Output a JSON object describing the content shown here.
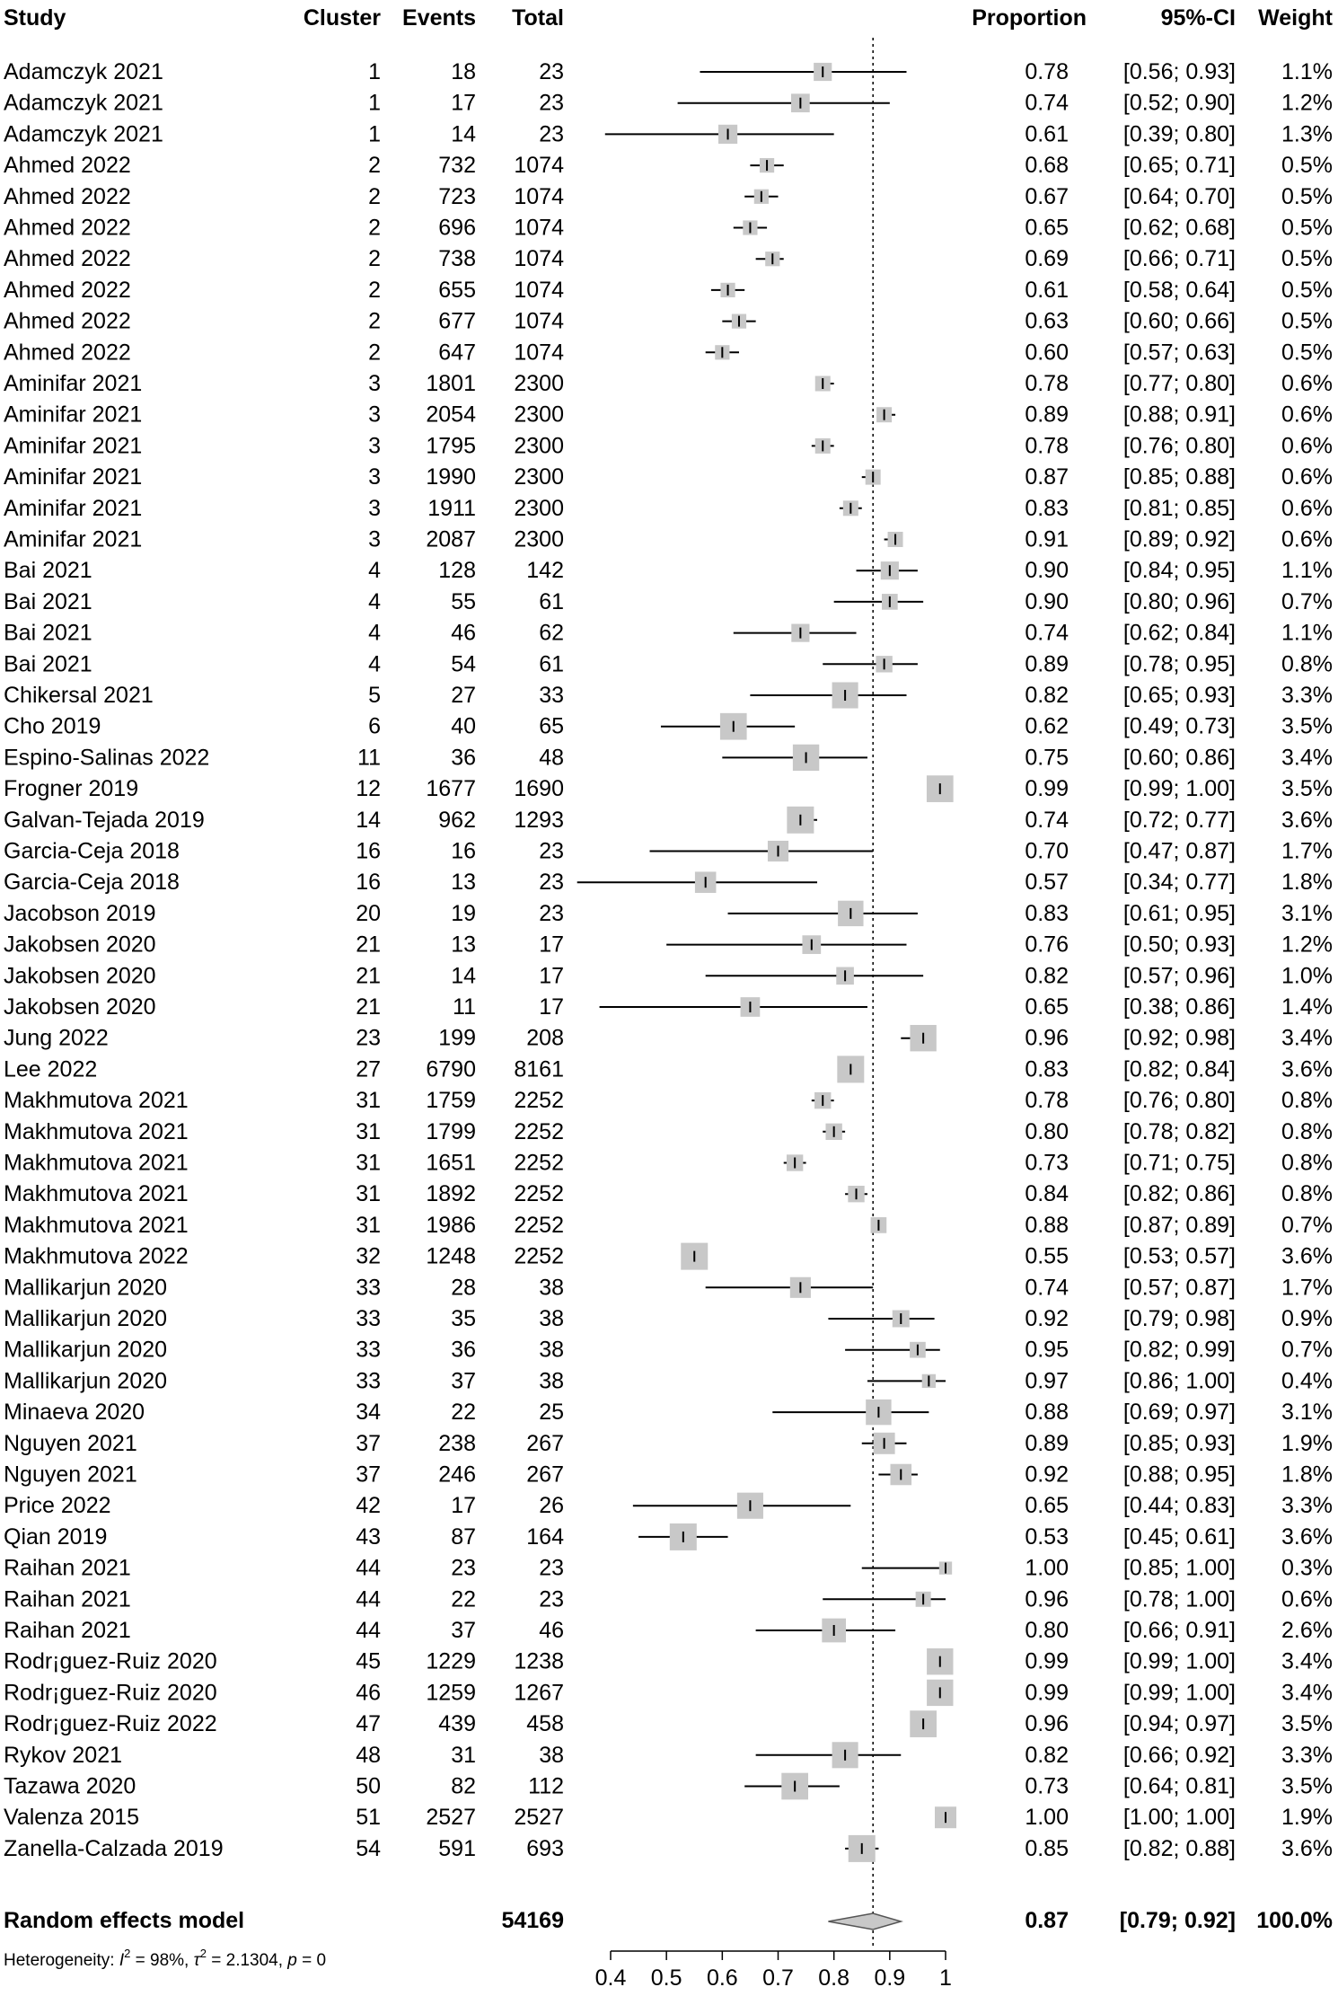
{
  "chart_data": {
    "type": "forest",
    "columns": {
      "study": "Study",
      "cluster": "Cluster",
      "events": "Events",
      "total": "Total",
      "proportion": "Proportion",
      "ci": "95%-CI",
      "weight": "Weight"
    },
    "xaxis": {
      "range": [
        0.4,
        1.0
      ],
      "ticks": [
        "0.4",
        "0.5",
        "0.6",
        "0.7",
        "0.8",
        "0.9",
        "1"
      ],
      "reference_line": 0.87
    },
    "rows": [
      {
        "study": "Adamczyk 2021",
        "cluster": "1",
        "events": "18",
        "total": "23",
        "prop": 0.78,
        "lo": 0.56,
        "hi": 0.93,
        "prop_text": "0.78",
        "ci_text": "[0.56; 0.93]",
        "weight": "1.1%"
      },
      {
        "study": "Adamczyk 2021",
        "cluster": "1",
        "events": "17",
        "total": "23",
        "prop": 0.74,
        "lo": 0.52,
        "hi": 0.9,
        "prop_text": "0.74",
        "ci_text": "[0.52; 0.90]",
        "weight": "1.2%"
      },
      {
        "study": "Adamczyk 2021",
        "cluster": "1",
        "events": "14",
        "total": "23",
        "prop": 0.61,
        "lo": 0.39,
        "hi": 0.8,
        "prop_text": "0.61",
        "ci_text": "[0.39; 0.80]",
        "weight": "1.3%"
      },
      {
        "study": "Ahmed 2022",
        "cluster": "2",
        "events": "732",
        "total": "1074",
        "prop": 0.68,
        "lo": 0.65,
        "hi": 0.71,
        "prop_text": "0.68",
        "ci_text": "[0.65; 0.71]",
        "weight": "0.5%"
      },
      {
        "study": "Ahmed 2022",
        "cluster": "2",
        "events": "723",
        "total": "1074",
        "prop": 0.67,
        "lo": 0.64,
        "hi": 0.7,
        "prop_text": "0.67",
        "ci_text": "[0.64; 0.70]",
        "weight": "0.5%"
      },
      {
        "study": "Ahmed 2022",
        "cluster": "2",
        "events": "696",
        "total": "1074",
        "prop": 0.65,
        "lo": 0.62,
        "hi": 0.68,
        "prop_text": "0.65",
        "ci_text": "[0.62; 0.68]",
        "weight": "0.5%"
      },
      {
        "study": "Ahmed 2022",
        "cluster": "2",
        "events": "738",
        "total": "1074",
        "prop": 0.69,
        "lo": 0.66,
        "hi": 0.71,
        "prop_text": "0.69",
        "ci_text": "[0.66; 0.71]",
        "weight": "0.5%"
      },
      {
        "study": "Ahmed 2022",
        "cluster": "2",
        "events": "655",
        "total": "1074",
        "prop": 0.61,
        "lo": 0.58,
        "hi": 0.64,
        "prop_text": "0.61",
        "ci_text": "[0.58; 0.64]",
        "weight": "0.5%"
      },
      {
        "study": "Ahmed 2022",
        "cluster": "2",
        "events": "677",
        "total": "1074",
        "prop": 0.63,
        "lo": 0.6,
        "hi": 0.66,
        "prop_text": "0.63",
        "ci_text": "[0.60; 0.66]",
        "weight": "0.5%"
      },
      {
        "study": "Ahmed 2022",
        "cluster": "2",
        "events": "647",
        "total": "1074",
        "prop": 0.6,
        "lo": 0.57,
        "hi": 0.63,
        "prop_text": "0.60",
        "ci_text": "[0.57; 0.63]",
        "weight": "0.5%"
      },
      {
        "study": "Aminifar 2021",
        "cluster": "3",
        "events": "1801",
        "total": "2300",
        "prop": 0.78,
        "lo": 0.77,
        "hi": 0.8,
        "prop_text": "0.78",
        "ci_text": "[0.77; 0.80]",
        "weight": "0.6%"
      },
      {
        "study": "Aminifar 2021",
        "cluster": "3",
        "events": "2054",
        "total": "2300",
        "prop": 0.89,
        "lo": 0.88,
        "hi": 0.91,
        "prop_text": "0.89",
        "ci_text": "[0.88; 0.91]",
        "weight": "0.6%"
      },
      {
        "study": "Aminifar 2021",
        "cluster": "3",
        "events": "1795",
        "total": "2300",
        "prop": 0.78,
        "lo": 0.76,
        "hi": 0.8,
        "prop_text": "0.78",
        "ci_text": "[0.76; 0.80]",
        "weight": "0.6%"
      },
      {
        "study": "Aminifar 2021",
        "cluster": "3",
        "events": "1990",
        "total": "2300",
        "prop": 0.87,
        "lo": 0.85,
        "hi": 0.88,
        "prop_text": "0.87",
        "ci_text": "[0.85; 0.88]",
        "weight": "0.6%"
      },
      {
        "study": "Aminifar 2021",
        "cluster": "3",
        "events": "1911",
        "total": "2300",
        "prop": 0.83,
        "lo": 0.81,
        "hi": 0.85,
        "prop_text": "0.83",
        "ci_text": "[0.81; 0.85]",
        "weight": "0.6%"
      },
      {
        "study": "Aminifar 2021",
        "cluster": "3",
        "events": "2087",
        "total": "2300",
        "prop": 0.91,
        "lo": 0.89,
        "hi": 0.92,
        "prop_text": "0.91",
        "ci_text": "[0.89; 0.92]",
        "weight": "0.6%"
      },
      {
        "study": "Bai 2021",
        "cluster": "4",
        "events": "128",
        "total": "142",
        "prop": 0.9,
        "lo": 0.84,
        "hi": 0.95,
        "prop_text": "0.90",
        "ci_text": "[0.84; 0.95]",
        "weight": "1.1%"
      },
      {
        "study": "Bai 2021",
        "cluster": "4",
        "events": "55",
        "total": "61",
        "prop": 0.9,
        "lo": 0.8,
        "hi": 0.96,
        "prop_text": "0.90",
        "ci_text": "[0.80; 0.96]",
        "weight": "0.7%"
      },
      {
        "study": "Bai 2021",
        "cluster": "4",
        "events": "46",
        "total": "62",
        "prop": 0.74,
        "lo": 0.62,
        "hi": 0.84,
        "prop_text": "0.74",
        "ci_text": "[0.62; 0.84]",
        "weight": "1.1%"
      },
      {
        "study": "Bai 2021",
        "cluster": "4",
        "events": "54",
        "total": "61",
        "prop": 0.89,
        "lo": 0.78,
        "hi": 0.95,
        "prop_text": "0.89",
        "ci_text": "[0.78; 0.95]",
        "weight": "0.8%"
      },
      {
        "study": "Chikersal 2021",
        "cluster": "5",
        "events": "27",
        "total": "33",
        "prop": 0.82,
        "lo": 0.65,
        "hi": 0.93,
        "prop_text": "0.82",
        "ci_text": "[0.65; 0.93]",
        "weight": "3.3%"
      },
      {
        "study": "Cho 2019",
        "cluster": "6",
        "events": "40",
        "total": "65",
        "prop": 0.62,
        "lo": 0.49,
        "hi": 0.73,
        "prop_text": "0.62",
        "ci_text": "[0.49; 0.73]",
        "weight": "3.5%"
      },
      {
        "study": "Espino-Salinas 2022",
        "cluster": "11",
        "events": "36",
        "total": "48",
        "prop": 0.75,
        "lo": 0.6,
        "hi": 0.86,
        "prop_text": "0.75",
        "ci_text": "[0.60; 0.86]",
        "weight": "3.4%"
      },
      {
        "study": "Frogner 2019",
        "cluster": "12",
        "events": "1677",
        "total": "1690",
        "prop": 0.99,
        "lo": 0.99,
        "hi": 1.0,
        "prop_text": "0.99",
        "ci_text": "[0.99; 1.00]",
        "weight": "3.5%"
      },
      {
        "study": "Galvan-Tejada 2019",
        "cluster": "14",
        "events": "962",
        "total": "1293",
        "prop": 0.74,
        "lo": 0.72,
        "hi": 0.77,
        "prop_text": "0.74",
        "ci_text": "[0.72; 0.77]",
        "weight": "3.6%"
      },
      {
        "study": "Garcia-Ceja 2018",
        "cluster": "16",
        "events": "16",
        "total": "23",
        "prop": 0.7,
        "lo": 0.47,
        "hi": 0.87,
        "prop_text": "0.70",
        "ci_text": "[0.47; 0.87]",
        "weight": "1.7%"
      },
      {
        "study": "Garcia-Ceja 2018",
        "cluster": "16",
        "events": "13",
        "total": "23",
        "prop": 0.57,
        "lo": 0.34,
        "hi": 0.77,
        "prop_text": "0.57",
        "ci_text": "[0.34; 0.77]",
        "weight": "1.8%"
      },
      {
        "study": "Jacobson 2019",
        "cluster": "20",
        "events": "19",
        "total": "23",
        "prop": 0.83,
        "lo": 0.61,
        "hi": 0.95,
        "prop_text": "0.83",
        "ci_text": "[0.61; 0.95]",
        "weight": "3.1%"
      },
      {
        "study": "Jakobsen 2020",
        "cluster": "21",
        "events": "13",
        "total": "17",
        "prop": 0.76,
        "lo": 0.5,
        "hi": 0.93,
        "prop_text": "0.76",
        "ci_text": "[0.50; 0.93]",
        "weight": "1.2%"
      },
      {
        "study": "Jakobsen 2020",
        "cluster": "21",
        "events": "14",
        "total": "17",
        "prop": 0.82,
        "lo": 0.57,
        "hi": 0.96,
        "prop_text": "0.82",
        "ci_text": "[0.57; 0.96]",
        "weight": "1.0%"
      },
      {
        "study": "Jakobsen 2020",
        "cluster": "21",
        "events": "11",
        "total": "17",
        "prop": 0.65,
        "lo": 0.38,
        "hi": 0.86,
        "prop_text": "0.65",
        "ci_text": "[0.38; 0.86]",
        "weight": "1.4%"
      },
      {
        "study": "Jung 2022",
        "cluster": "23",
        "events": "199",
        "total": "208",
        "prop": 0.96,
        "lo": 0.92,
        "hi": 0.98,
        "prop_text": "0.96",
        "ci_text": "[0.92; 0.98]",
        "weight": "3.4%"
      },
      {
        "study": "Lee 2022",
        "cluster": "27",
        "events": "6790",
        "total": "8161",
        "prop": 0.83,
        "lo": 0.82,
        "hi": 0.84,
        "prop_text": "0.83",
        "ci_text": "[0.82; 0.84]",
        "weight": "3.6%"
      },
      {
        "study": "Makhmutova 2021",
        "cluster": "31",
        "events": "1759",
        "total": "2252",
        "prop": 0.78,
        "lo": 0.76,
        "hi": 0.8,
        "prop_text": "0.78",
        "ci_text": "[0.76; 0.80]",
        "weight": "0.8%"
      },
      {
        "study": "Makhmutova 2021",
        "cluster": "31",
        "events": "1799",
        "total": "2252",
        "prop": 0.8,
        "lo": 0.78,
        "hi": 0.82,
        "prop_text": "0.80",
        "ci_text": "[0.78; 0.82]",
        "weight": "0.8%"
      },
      {
        "study": "Makhmutova 2021",
        "cluster": "31",
        "events": "1651",
        "total": "2252",
        "prop": 0.73,
        "lo": 0.71,
        "hi": 0.75,
        "prop_text": "0.73",
        "ci_text": "[0.71; 0.75]",
        "weight": "0.8%"
      },
      {
        "study": "Makhmutova 2021",
        "cluster": "31",
        "events": "1892",
        "total": "2252",
        "prop": 0.84,
        "lo": 0.82,
        "hi": 0.86,
        "prop_text": "0.84",
        "ci_text": "[0.82; 0.86]",
        "weight": "0.8%"
      },
      {
        "study": "Makhmutova 2021",
        "cluster": "31",
        "events": "1986",
        "total": "2252",
        "prop": 0.88,
        "lo": 0.87,
        "hi": 0.89,
        "prop_text": "0.88",
        "ci_text": "[0.87; 0.89]",
        "weight": "0.7%"
      },
      {
        "study": "Makhmutova 2022",
        "cluster": "32",
        "events": "1248",
        "total": "2252",
        "prop": 0.55,
        "lo": 0.53,
        "hi": 0.57,
        "prop_text": "0.55",
        "ci_text": "[0.53; 0.57]",
        "weight": "3.6%"
      },
      {
        "study": "Mallikarjun 2020",
        "cluster": "33",
        "events": "28",
        "total": "38",
        "prop": 0.74,
        "lo": 0.57,
        "hi": 0.87,
        "prop_text": "0.74",
        "ci_text": "[0.57; 0.87]",
        "weight": "1.7%"
      },
      {
        "study": "Mallikarjun 2020",
        "cluster": "33",
        "events": "35",
        "total": "38",
        "prop": 0.92,
        "lo": 0.79,
        "hi": 0.98,
        "prop_text": "0.92",
        "ci_text": "[0.79; 0.98]",
        "weight": "0.9%"
      },
      {
        "study": "Mallikarjun 2020",
        "cluster": "33",
        "events": "36",
        "total": "38",
        "prop": 0.95,
        "lo": 0.82,
        "hi": 0.99,
        "prop_text": "0.95",
        "ci_text": "[0.82; 0.99]",
        "weight": "0.7%"
      },
      {
        "study": "Mallikarjun 2020",
        "cluster": "33",
        "events": "37",
        "total": "38",
        "prop": 0.97,
        "lo": 0.86,
        "hi": 1.0,
        "prop_text": "0.97",
        "ci_text": "[0.86; 1.00]",
        "weight": "0.4%"
      },
      {
        "study": "Minaeva 2020",
        "cluster": "34",
        "events": "22",
        "total": "25",
        "prop": 0.88,
        "lo": 0.69,
        "hi": 0.97,
        "prop_text": "0.88",
        "ci_text": "[0.69; 0.97]",
        "weight": "3.1%"
      },
      {
        "study": "Nguyen 2021",
        "cluster": "37",
        "events": "238",
        "total": "267",
        "prop": 0.89,
        "lo": 0.85,
        "hi": 0.93,
        "prop_text": "0.89",
        "ci_text": "[0.85; 0.93]",
        "weight": "1.9%"
      },
      {
        "study": "Nguyen 2021",
        "cluster": "37",
        "events": "246",
        "total": "267",
        "prop": 0.92,
        "lo": 0.88,
        "hi": 0.95,
        "prop_text": "0.92",
        "ci_text": "[0.88; 0.95]",
        "weight": "1.8%"
      },
      {
        "study": "Price  2022",
        "cluster": "42",
        "events": "17",
        "total": "26",
        "prop": 0.65,
        "lo": 0.44,
        "hi": 0.83,
        "prop_text": "0.65",
        "ci_text": "[0.44; 0.83]",
        "weight": "3.3%"
      },
      {
        "study": "Qian 2019",
        "cluster": "43",
        "events": "87",
        "total": "164",
        "prop": 0.53,
        "lo": 0.45,
        "hi": 0.61,
        "prop_text": "0.53",
        "ci_text": "[0.45; 0.61]",
        "weight": "3.6%"
      },
      {
        "study": "Raihan 2021",
        "cluster": "44",
        "events": "23",
        "total": "23",
        "prop": 1.0,
        "lo": 0.85,
        "hi": 1.0,
        "prop_text": "1.00",
        "ci_text": "[0.85; 1.00]",
        "weight": "0.3%"
      },
      {
        "study": "Raihan 2021",
        "cluster": "44",
        "events": "22",
        "total": "23",
        "prop": 0.96,
        "lo": 0.78,
        "hi": 1.0,
        "prop_text": "0.96",
        "ci_text": "[0.78; 1.00]",
        "weight": "0.6%"
      },
      {
        "study": "Raihan 2021",
        "cluster": "44",
        "events": "37",
        "total": "46",
        "prop": 0.8,
        "lo": 0.66,
        "hi": 0.91,
        "prop_text": "0.80",
        "ci_text": "[0.66; 0.91]",
        "weight": "2.6%"
      },
      {
        "study": "Rodr¡guez-Ruiz 2020",
        "cluster": "45",
        "events": "1229",
        "total": "1238",
        "prop": 0.99,
        "lo": 0.99,
        "hi": 1.0,
        "prop_text": "0.99",
        "ci_text": "[0.99; 1.00]",
        "weight": "3.4%"
      },
      {
        "study": "Rodr¡guez-Ruiz 2020",
        "cluster": "46",
        "events": "1259",
        "total": "1267",
        "prop": 0.99,
        "lo": 0.99,
        "hi": 1.0,
        "prop_text": "0.99",
        "ci_text": "[0.99; 1.00]",
        "weight": "3.4%"
      },
      {
        "study": "Rodr¡guez-Ruiz 2022",
        "cluster": "47",
        "events": "439",
        "total": "458",
        "prop": 0.96,
        "lo": 0.94,
        "hi": 0.97,
        "prop_text": "0.96",
        "ci_text": "[0.94; 0.97]",
        "weight": "3.5%"
      },
      {
        "study": "Rykov 2021",
        "cluster": "48",
        "events": "31",
        "total": "38",
        "prop": 0.82,
        "lo": 0.66,
        "hi": 0.92,
        "prop_text": "0.82",
        "ci_text": "[0.66; 0.92]",
        "weight": "3.3%"
      },
      {
        "study": "Tazawa 2020",
        "cluster": "50",
        "events": "82",
        "total": "112",
        "prop": 0.73,
        "lo": 0.64,
        "hi": 0.81,
        "prop_text": "0.73",
        "ci_text": "[0.64; 0.81]",
        "weight": "3.5%"
      },
      {
        "study": "Valenza 2015",
        "cluster": "51",
        "events": "2527",
        "total": "2527",
        "prop": 1.0,
        "lo": 1.0,
        "hi": 1.0,
        "prop_text": "1.00",
        "ci_text": "[1.00; 1.00]",
        "weight": "1.9%"
      },
      {
        "study": "Zanella-Calzada 2019",
        "cluster": "54",
        "events": "591",
        "total": "693",
        "prop": 0.85,
        "lo": 0.82,
        "hi": 0.88,
        "prop_text": "0.85",
        "ci_text": "[0.82; 0.88]",
        "weight": "3.6%"
      }
    ],
    "summary": {
      "label": "Random effects model",
      "total": "54169",
      "prop": 0.87,
      "lo": 0.79,
      "hi": 0.92,
      "prop_text": "0.87",
      "ci_text": "[0.79; 0.92]",
      "weight": "100.0%"
    },
    "heterogeneity": {
      "prefix": "Heterogeneity: ",
      "i2_symbol": "I",
      "i2_value": " = 98%, ",
      "tau2_symbol": "τ",
      "tau2_value": " = 2.1304, ",
      "p_symbol": "p",
      "p_value": " = 0",
      "superscript": "2"
    }
  }
}
